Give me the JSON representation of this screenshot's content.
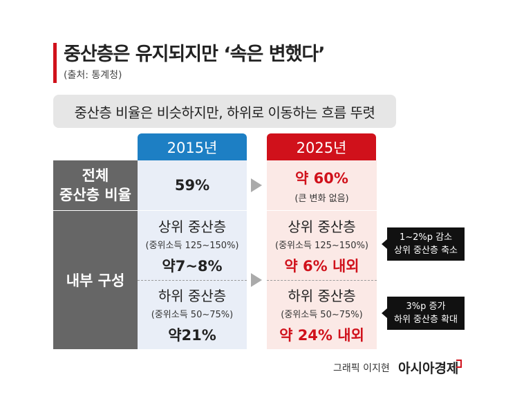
{
  "header": {
    "title": "중산층은 유지되지만 ‘속은 변했다’",
    "source": "(출처: 통계청)"
  },
  "summary": "중산층 비율은 비슷하지만, 하위로 이동하는 흐름 뚜렷",
  "table": {
    "columns": [
      "2015년",
      "2025년"
    ],
    "overall": {
      "label": [
        "전체",
        "중산층 비율"
      ],
      "values": [
        "59%",
        "약 60%"
      ],
      "note": "(큰 변화 없음)"
    },
    "composition": {
      "label": "내부 구성",
      "groups": [
        {
          "name": "상위 중산층",
          "range": "(중위소득 125~150%)",
          "values": [
            "약7~8%",
            "약 6% 내외"
          ],
          "callout": [
            "1~2%p 감소",
            "상위 중산층 축소"
          ]
        },
        {
          "name": "하위 중산층",
          "range": "(중위소득 50~75%)",
          "values": [
            "약21%",
            "약 24% 내외"
          ],
          "callout": [
            "3%p 증가",
            "하위 중산층 확대"
          ]
        }
      ]
    }
  },
  "credit": {
    "graphic": "그래픽 이지현",
    "brand": "아시아경제"
  }
}
